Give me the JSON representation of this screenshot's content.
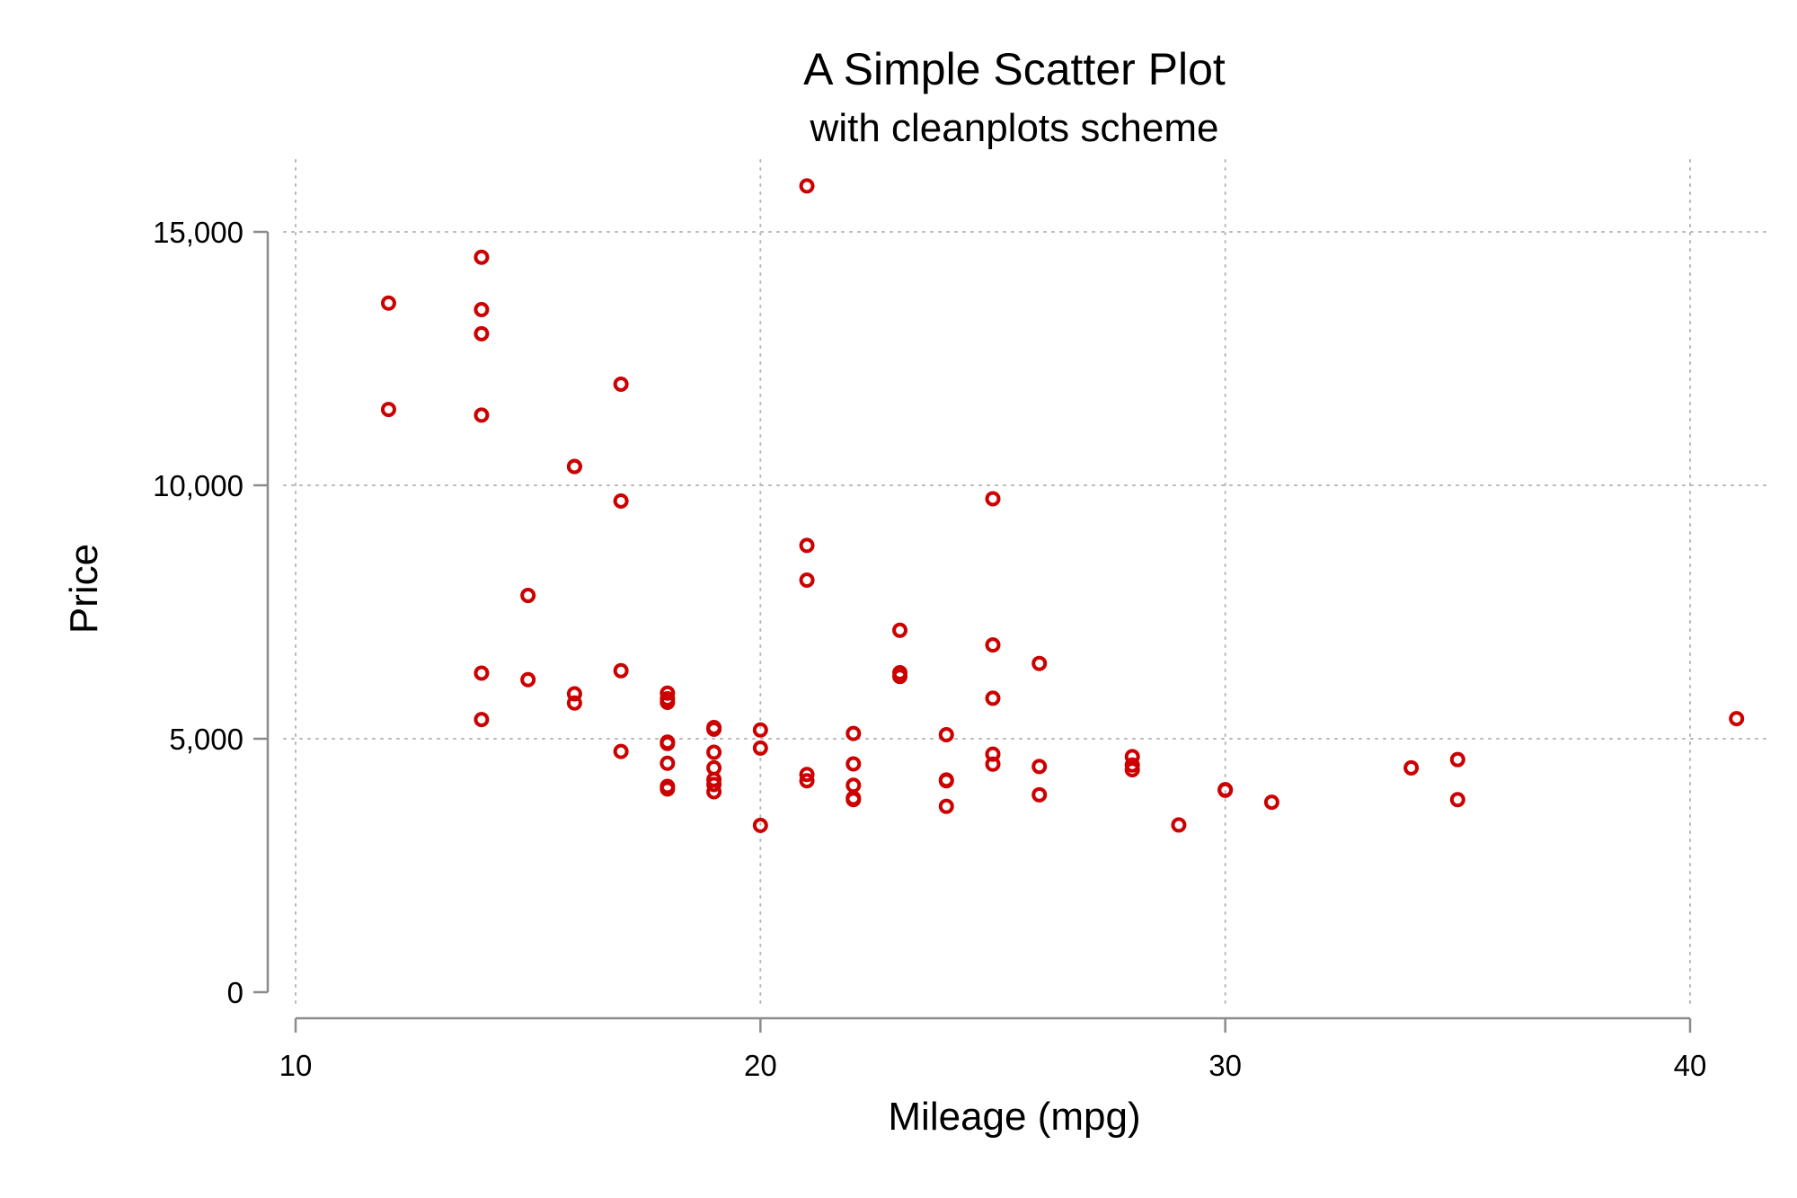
{
  "chart_data": {
    "type": "scatter",
    "title": "A Simple Scatter Plot",
    "subtitle": "with cleanplots scheme",
    "xlabel": "Mileage (mpg)",
    "ylabel": "Price",
    "xlim": [
      10,
      40
    ],
    "ylim": [
      0,
      15000
    ],
    "xticks": [
      10,
      20,
      30,
      40
    ],
    "yticks": [
      0,
      5000,
      10000,
      15000
    ],
    "xtick_labels": [
      "10",
      "20",
      "30",
      "40"
    ],
    "ytick_labels": [
      "0",
      "5,000",
      "10,000",
      "15,000"
    ],
    "grid": true,
    "marker": "hollow-circle",
    "marker_color": "#cc0000",
    "series": [
      {
        "points": [
          [
            12,
            13594
          ],
          [
            12,
            11497
          ],
          [
            14,
            14500
          ],
          [
            14,
            13466
          ],
          [
            14,
            12990
          ],
          [
            14,
            11385
          ],
          [
            14,
            6295
          ],
          [
            14,
            5379
          ],
          [
            15,
            7827
          ],
          [
            15,
            6165
          ],
          [
            16,
            10371
          ],
          [
            16,
            10372
          ],
          [
            16,
            5886
          ],
          [
            16,
            5705
          ],
          [
            17,
            11995
          ],
          [
            17,
            9690
          ],
          [
            17,
            6342
          ],
          [
            17,
            4749
          ],
          [
            18,
            5899
          ],
          [
            18,
            5788
          ],
          [
            18,
            5719
          ],
          [
            18,
            4934
          ],
          [
            18,
            4906
          ],
          [
            18,
            4516
          ],
          [
            18,
            4060
          ],
          [
            18,
            4010
          ],
          [
            19,
            5222
          ],
          [
            19,
            5189
          ],
          [
            19,
            4733
          ],
          [
            19,
            4425
          ],
          [
            19,
            4195
          ],
          [
            19,
            4099
          ],
          [
            19,
            3955
          ],
          [
            20,
            5172
          ],
          [
            20,
            4816
          ],
          [
            20,
            3291
          ],
          [
            21,
            15906
          ],
          [
            21,
            8814
          ],
          [
            21,
            8129
          ],
          [
            21,
            4296
          ],
          [
            21,
            4172
          ],
          [
            22,
            5104
          ],
          [
            22,
            4504
          ],
          [
            22,
            4082
          ],
          [
            22,
            3829
          ],
          [
            22,
            3799
          ],
          [
            23,
            7140
          ],
          [
            23,
            6303
          ],
          [
            23,
            6229
          ],
          [
            24,
            5079
          ],
          [
            24,
            4187
          ],
          [
            24,
            4172
          ],
          [
            24,
            3667
          ],
          [
            25,
            9735
          ],
          [
            25,
            6850
          ],
          [
            25,
            5799
          ],
          [
            25,
            4697
          ],
          [
            25,
            4499
          ],
          [
            26,
            6486
          ],
          [
            26,
            4453
          ],
          [
            26,
            3895
          ],
          [
            28,
            4647
          ],
          [
            28,
            4482
          ],
          [
            28,
            4389
          ],
          [
            29,
            3299
          ],
          [
            30,
            3995
          ],
          [
            30,
            3984
          ],
          [
            31,
            3748
          ],
          [
            34,
            4425
          ],
          [
            35,
            4589
          ],
          [
            35,
            3798
          ],
          [
            41,
            5397
          ]
        ]
      }
    ]
  }
}
